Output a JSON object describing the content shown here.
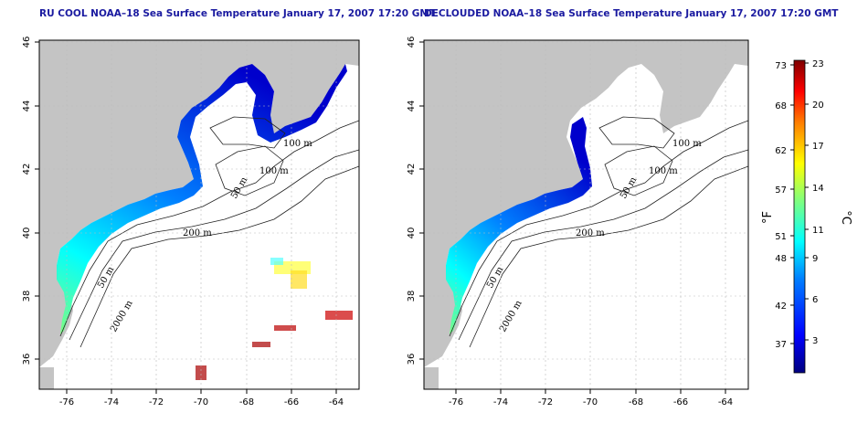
{
  "panels": [
    {
      "id": "left",
      "title": "RU COOL NOAA–18 Sea Surface Temperature January 17, 2007 17:20 GMT"
    },
    {
      "id": "right",
      "title": "DECLOUDED NOAA–18 Sea Surface Temperature January 17, 2007 17:20 GMT"
    }
  ],
  "axes": {
    "lon_ticks": [
      "-76",
      "-74",
      "-72",
      "-70",
      "-68",
      "-66",
      "-64"
    ],
    "lat_ticks": [
      "46",
      "44",
      "42",
      "40",
      "38",
      "36"
    ],
    "lon_range": [
      -77,
      -63
    ],
    "lat_range": [
      35,
      46
    ]
  },
  "contours": {
    "labels": [
      "100 m",
      "100 m",
      "50 m",
      "200 m",
      "50 m",
      "2000 m"
    ]
  },
  "colorbar": {
    "fahrenheit_label": "°F",
    "celsius_label": "°C",
    "fahrenheit_ticks": [
      "73",
      "68",
      "62",
      "57",
      "51",
      "48",
      "42",
      "37"
    ],
    "celsius_ticks": [
      "23",
      "20",
      "17",
      "14",
      "11",
      "9",
      "6",
      "3"
    ],
    "range_c": [
      0,
      23
    ],
    "colors": [
      "#00007f",
      "#0000ff",
      "#007fff",
      "#00ffff",
      "#7fff7f",
      "#ffff00",
      "#ff7f00",
      "#ff0000",
      "#7f0000"
    ]
  },
  "colors": {
    "land": "#c4c4c4",
    "title": "#1a1aa0"
  }
}
